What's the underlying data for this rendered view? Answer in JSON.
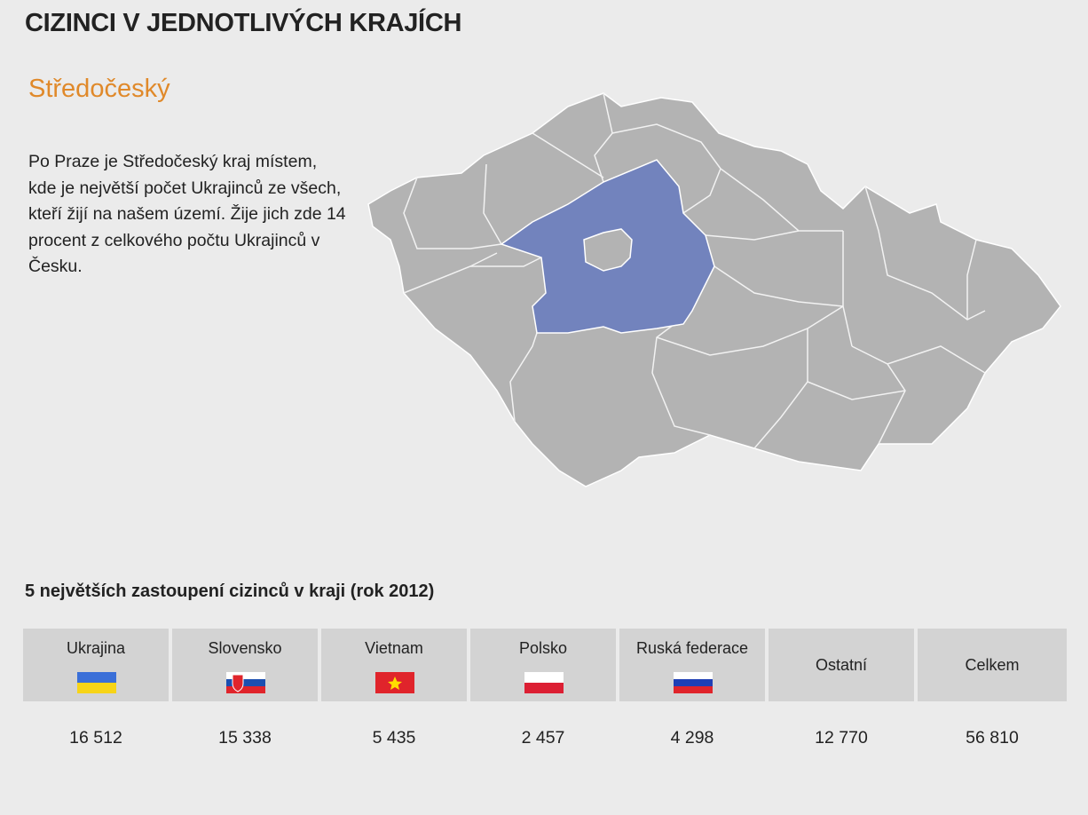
{
  "header": {
    "title": "CIZINCI V JEDNOTLIVÝCH KRAJÍCH"
  },
  "region": {
    "name": "Středočeský",
    "description": "Po Praze je Středočeský kraj místem, kde je největší počet Ukrajinců ze všech, kteří žijí na našem území. Žije jich zde 14 procent z celkového počtu Ukrajinců v Česku."
  },
  "table": {
    "title": "5 největších zastoupení cizinců v kraji (rok 2012)",
    "columns": [
      {
        "label": "Ukrajina",
        "value": "16 512"
      },
      {
        "label": "Slovensko",
        "value": "15 338"
      },
      {
        "label": "Vietnam",
        "value": "5 435"
      },
      {
        "label": "Polsko",
        "value": "2 457"
      },
      {
        "label": "Ruská federace",
        "value": "4 298"
      },
      {
        "label": "Ostatní",
        "value": "12 770"
      },
      {
        "label": "Celkem",
        "value": "56 810"
      }
    ]
  }
}
